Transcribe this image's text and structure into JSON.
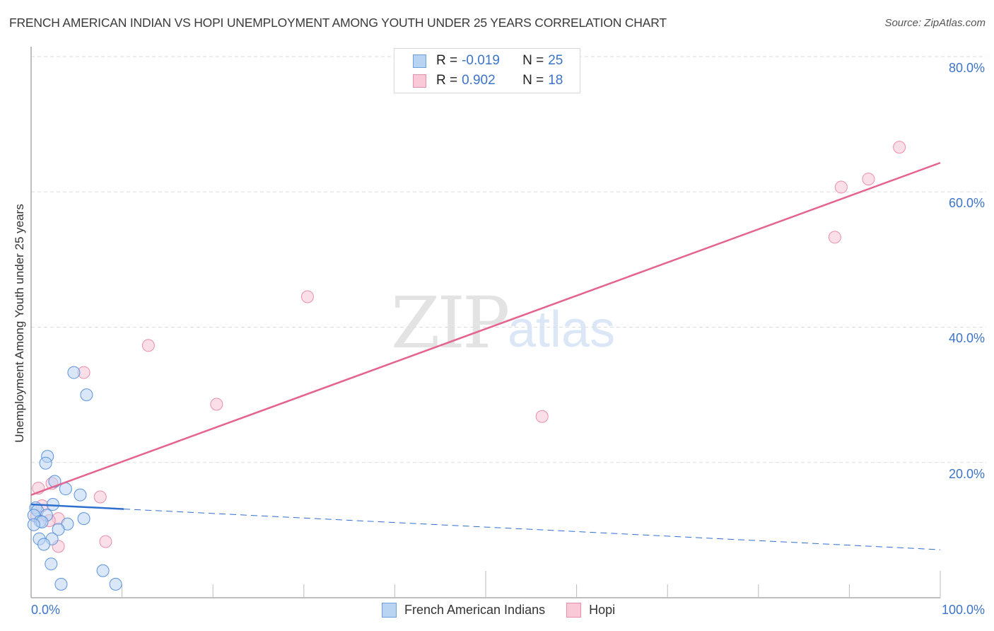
{
  "title": "FRENCH AMERICAN INDIAN VS HOPI UNEMPLOYMENT AMONG YOUTH UNDER 25 YEARS CORRELATION CHART",
  "source": "Source: ZipAtlas.com",
  "watermark": {
    "zip": "ZIP",
    "atlas": "atlas"
  },
  "legend": {
    "rows": [
      {
        "series": "French American Indians",
        "r_label": "R =",
        "r_value": "-0.019",
        "n_label": "N =",
        "n_value": "25",
        "fill": "#b9d3f3",
        "stroke": "#6a9fe0"
      },
      {
        "series": "Hopi",
        "r_label": "R =",
        "r_value": "0.902",
        "n_label": "N =",
        "n_value": "18",
        "fill": "#f9c9d8",
        "stroke": "#ea8eab"
      }
    ]
  },
  "bottom_legend": [
    {
      "label": "French American Indians",
      "fill": "#b9d3f3",
      "stroke": "#6a9fe0"
    },
    {
      "label": "Hopi",
      "fill": "#f9c9d8",
      "stroke": "#ea8eab"
    }
  ],
  "axes": {
    "y_label": "Unemployment Among Youth under 25 years",
    "y_ticks": [
      "80.0%",
      "60.0%",
      "40.0%",
      "20.0%"
    ],
    "x_ticks": [
      "0.0%",
      "100.0%"
    ]
  },
  "colors": {
    "blue_fill": "#b9d3f3",
    "blue_stroke": "#5b93de",
    "blue_line": "#2f6fcf",
    "pink_fill": "#f9c9d8",
    "pink_stroke": "#ea8eab",
    "pink_line": "#e4648f",
    "tick_text": "#3b74c9",
    "grid": "#dddddd"
  },
  "chart_data": {
    "type": "scatter",
    "title": "FRENCH AMERICAN INDIAN VS HOPI UNEMPLOYMENT AMONG YOUTH UNDER 25 YEARS CORRELATION CHART",
    "xlabel": "",
    "ylabel": "Unemployment Among Youth under 25 years",
    "xlim": [
      0,
      100
    ],
    "ylim": [
      0,
      80
    ],
    "x_tick_labels": [
      "0.0%",
      "100.0%"
    ],
    "y_tick_labels": [
      "20.0%",
      "40.0%",
      "60.0%",
      "80.0%"
    ],
    "grid": "horizontal dashed",
    "legend_position": "top-center and bottom",
    "series": [
      {
        "name": "French American Indians",
        "r": -0.019,
        "n": 25,
        "points": [
          [
            4.7,
            33.3
          ],
          [
            6.1,
            30.0
          ],
          [
            1.8,
            20.9
          ],
          [
            1.6,
            19.9
          ],
          [
            2.6,
            17.2
          ],
          [
            3.8,
            16.1
          ],
          [
            5.4,
            15.2
          ],
          [
            2.4,
            13.8
          ],
          [
            0.5,
            13.3
          ],
          [
            0.7,
            12.9
          ],
          [
            0.3,
            12.2
          ],
          [
            1.7,
            12.2
          ],
          [
            5.8,
            11.7
          ],
          [
            1.0,
            11.3
          ],
          [
            1.2,
            11.2
          ],
          [
            4.0,
            10.9
          ],
          [
            0.3,
            10.8
          ],
          [
            3.0,
            10.1
          ],
          [
            0.9,
            8.7
          ],
          [
            2.3,
            8.7
          ],
          [
            1.4,
            7.9
          ],
          [
            2.2,
            5.0
          ],
          [
            7.9,
            4.0
          ],
          [
            3.3,
            2.0
          ],
          [
            9.3,
            2.0
          ]
        ],
        "trend": {
          "x": [
            0,
            100
          ],
          "y": [
            13.8,
            7.1
          ],
          "solid_until_x": 10.2
        }
      },
      {
        "name": "Hopi",
        "r": 0.902,
        "n": 18,
        "points": [
          [
            95.5,
            66.6
          ],
          [
            92.1,
            61.9
          ],
          [
            89.1,
            60.7
          ],
          [
            88.4,
            53.3
          ],
          [
            30.4,
            44.5
          ],
          [
            12.9,
            37.3
          ],
          [
            5.8,
            33.3
          ],
          [
            20.4,
            28.6
          ],
          [
            56.2,
            26.8
          ],
          [
            2.3,
            16.9
          ],
          [
            0.8,
            16.2
          ],
          [
            7.6,
            14.9
          ],
          [
            1.2,
            13.6
          ],
          [
            0.6,
            12.0
          ],
          [
            3.0,
            11.7
          ],
          [
            2.0,
            11.4
          ],
          [
            8.2,
            8.3
          ],
          [
            3.0,
            7.6
          ]
        ],
        "trend": {
          "x": [
            0,
            100
          ],
          "y": [
            15.2,
            64.3
          ]
        }
      }
    ]
  }
}
